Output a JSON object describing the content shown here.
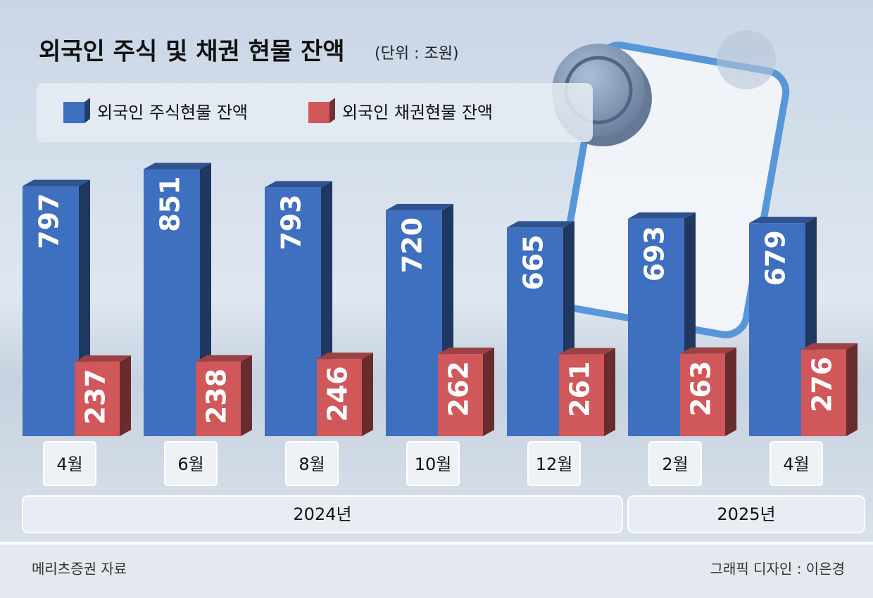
{
  "chart_data": {
    "type": "bar",
    "title": "외국인 주식 및 채권 현물 잔액",
    "subtitle": "(단위 : 조원)",
    "groups": [
      {
        "label": "2024년",
        "categories": [
          "4월",
          "6월",
          "8월",
          "10월",
          "12월"
        ]
      },
      {
        "label": "2025년",
        "categories": [
          "2월",
          "4월"
        ]
      }
    ],
    "series": [
      {
        "name": "외국인 주식현물 잔액",
        "color": "#3f6fbf",
        "values": [
          797,
          851,
          793,
          720,
          665,
          693,
          679
        ]
      },
      {
        "name": "외국인 채권현물 잔액",
        "color": "#d0575a",
        "values": [
          237,
          238,
          246,
          262,
          261,
          263,
          276
        ]
      }
    ],
    "ylim": [
      0,
      1000
    ],
    "source": "메리츠증권 자료",
    "credit": "그래픽 디자인 : 이은경"
  }
}
